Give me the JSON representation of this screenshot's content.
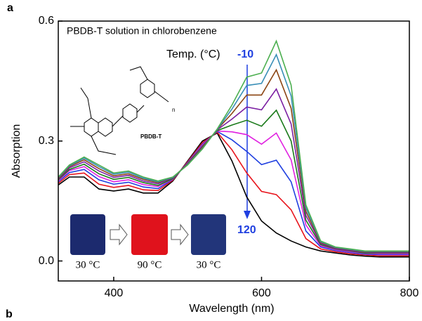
{
  "chart_data": {
    "type": "line",
    "x_label": "Wavelength (nm)",
    "y_label": "Absorption",
    "xlim": [
      325,
      800
    ],
    "ylim": [
      -0.05,
      0.6
    ],
    "xticks": [
      400,
      600,
      800
    ],
    "yticks": [
      {
        "value": 0,
        "label": "0.0"
      },
      0.3,
      0.6
    ],
    "x": [
      325,
      340,
      360,
      380,
      400,
      420,
      440,
      460,
      480,
      500,
      520,
      540,
      560,
      580,
      600,
      620,
      640,
      660,
      680,
      700,
      720,
      740,
      760,
      780,
      800
    ],
    "series": [
      {
        "color": "#000000",
        "values": [
          0.19,
          0.21,
          0.21,
          0.18,
          0.175,
          0.18,
          0.17,
          0.17,
          0.2,
          0.25,
          0.3,
          0.32,
          0.25,
          0.16,
          0.1,
          0.07,
          0.05,
          0.035,
          0.025,
          0.02,
          0.015,
          0.012,
          0.01,
          0.01,
          0.01
        ]
      },
      {
        "color": "#e8141c",
        "values": [
          0.194,
          0.216,
          0.22,
          0.192,
          0.184,
          0.189,
          0.178,
          0.176,
          0.202,
          0.248,
          0.296,
          0.322,
          0.278,
          0.22,
          0.174,
          0.166,
          0.128,
          0.056,
          0.03,
          0.023,
          0.018,
          0.015,
          0.013,
          0.013,
          0.013
        ]
      },
      {
        "color": "#1f3fe0",
        "values": [
          0.198,
          0.221,
          0.229,
          0.203,
          0.192,
          0.197,
          0.185,
          0.181,
          0.204,
          0.246,
          0.292,
          0.324,
          0.303,
          0.274,
          0.241,
          0.252,
          0.198,
          0.075,
          0.035,
          0.026,
          0.021,
          0.017,
          0.016,
          0.016,
          0.016
        ]
      },
      {
        "color": "#e020e0",
        "values": [
          0.2,
          0.226,
          0.236,
          0.211,
          0.198,
          0.203,
          0.191,
          0.186,
          0.205,
          0.245,
          0.29,
          0.325,
          0.323,
          0.316,
          0.292,
          0.32,
          0.253,
          0.09,
          0.038,
          0.028,
          0.023,
          0.019,
          0.018,
          0.018,
          0.018
        ]
      },
      {
        "color": "#1a7a1a",
        "values": [
          0.203,
          0.229,
          0.242,
          0.218,
          0.204,
          0.209,
          0.196,
          0.189,
          0.206,
          0.244,
          0.287,
          0.326,
          0.34,
          0.352,
          0.337,
          0.377,
          0.3,
          0.102,
          0.041,
          0.03,
          0.025,
          0.02,
          0.02,
          0.02,
          0.02
        ]
      },
      {
        "color": "#7b1fa2",
        "values": [
          0.205,
          0.233,
          0.248,
          0.225,
          0.209,
          0.214,
          0.2,
          0.193,
          0.208,
          0.243,
          0.285,
          0.328,
          0.355,
          0.385,
          0.378,
          0.43,
          0.343,
          0.114,
          0.044,
          0.031,
          0.026,
          0.022,
          0.021,
          0.021,
          0.021
        ]
      },
      {
        "color": "#8b4513",
        "values": [
          0.207,
          0.236,
          0.253,
          0.231,
          0.213,
          0.218,
          0.204,
          0.196,
          0.209,
          0.242,
          0.283,
          0.329,
          0.369,
          0.415,
          0.415,
          0.478,
          0.382,
          0.124,
          0.046,
          0.033,
          0.028,
          0.023,
          0.023,
          0.023,
          0.023
        ]
      },
      {
        "color": "#3a8fb7",
        "values": [
          0.209,
          0.238,
          0.257,
          0.236,
          0.217,
          0.222,
          0.207,
          0.198,
          0.209,
          0.241,
          0.281,
          0.329,
          0.38,
          0.439,
          0.444,
          0.516,
          0.413,
          0.133,
          0.048,
          0.034,
          0.029,
          0.024,
          0.024,
          0.024,
          0.024
        ]
      },
      {
        "color": "#4caf50",
        "values": [
          0.21,
          0.24,
          0.26,
          0.24,
          0.22,
          0.225,
          0.21,
          0.2,
          0.21,
          0.24,
          0.28,
          0.33,
          0.39,
          0.46,
          0.47,
          0.55,
          0.44,
          0.14,
          0.05,
          0.035,
          0.03,
          0.025,
          0.025,
          0.025,
          0.025
        ]
      }
    ],
    "annotations": {
      "panel_a": "a",
      "panel_b": "b",
      "solution": "PBDB-T solution in chlorobenzene",
      "temp": "Temp. (°C)",
      "temp_start": "-10",
      "temp_end": "120",
      "polymer": "PBDB-T",
      "repeat": "n",
      "vials": [
        "30 °C",
        "90 °C",
        "30 °C"
      ]
    }
  }
}
